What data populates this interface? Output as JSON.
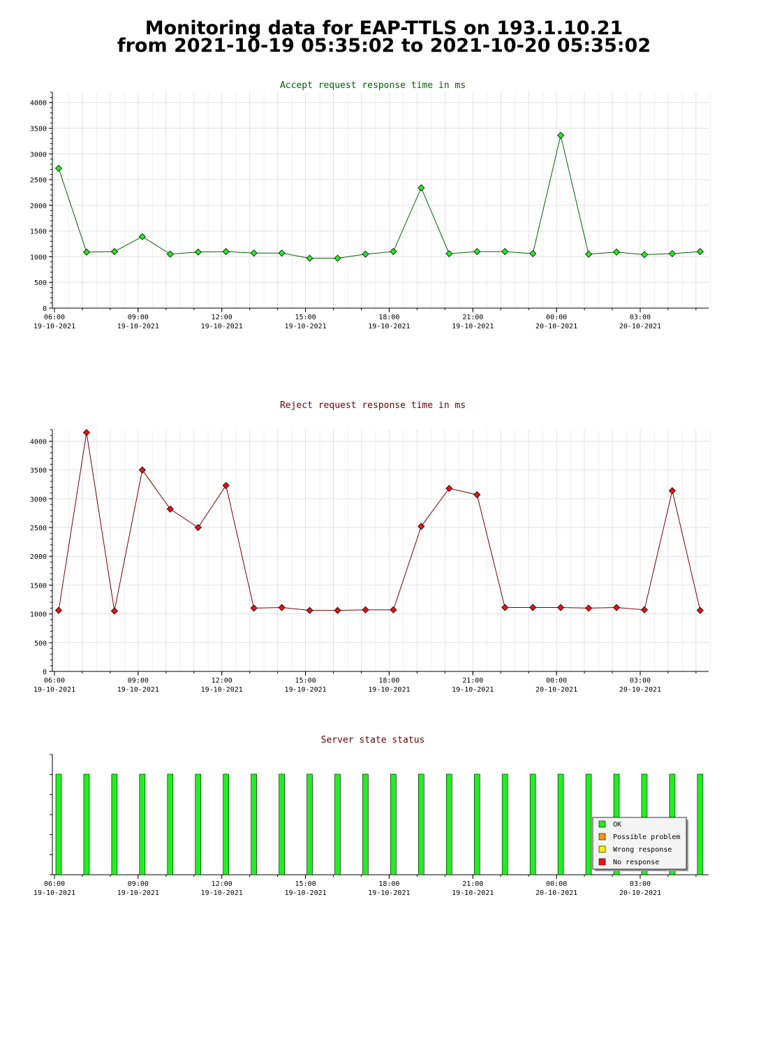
{
  "page": {
    "title_line1": "Monitoring data for EAP-TTLS on 193.1.10.21",
    "title_line2": "from 2021-10-19 05:35:02 to 2021-10-20 05:35:02"
  },
  "x_axis": {
    "ticks": [
      {
        "time": "06:00",
        "date": "19-10-2021",
        "hour": 0
      },
      {
        "time": "09:00",
        "date": "19-10-2021",
        "hour": 3
      },
      {
        "time": "12:00",
        "date": "19-10-2021",
        "hour": 6
      },
      {
        "time": "15:00",
        "date": "19-10-2021",
        "hour": 9
      },
      {
        "time": "18:00",
        "date": "19-10-2021",
        "hour": 12
      },
      {
        "time": "21:00",
        "date": "19-10-2021",
        "hour": 15
      },
      {
        "time": "00:00",
        "date": "20-10-2021",
        "hour": 18
      },
      {
        "time": "03:00",
        "date": "20-10-2021",
        "hour": 21
      }
    ]
  },
  "chart_data": [
    {
      "type": "line",
      "title": "Accept request response time in ms",
      "title_color": "#006400",
      "line_color": "#006400",
      "marker_color": "#22ee22",
      "ylim": [
        0,
        4200
      ],
      "yticks": [
        0,
        500,
        1000,
        1500,
        2000,
        2500,
        3000,
        3500,
        4000
      ],
      "x": [
        0.15,
        1.15,
        2.15,
        3.15,
        4.15,
        5.15,
        6.15,
        7.15,
        8.15,
        9.15,
        10.15,
        11.15,
        12.15,
        13.15,
        14.15,
        15.15,
        16.15,
        17.15,
        18.15,
        19.15,
        20.15,
        21.15,
        22.15,
        23.15
      ],
      "values": [
        2720,
        1090,
        1100,
        1390,
        1050,
        1090,
        1100,
        1070,
        1070,
        970,
        970,
        1050,
        1100,
        2340,
        1060,
        1100,
        1100,
        1060,
        3360,
        1050,
        1090,
        1040,
        1060,
        1100
      ]
    },
    {
      "type": "line",
      "title": "Reject request response time in ms",
      "title_color": "#6b0000",
      "line_color": "#7a0000",
      "marker_color": "#ee1111",
      "ylim": [
        0,
        4200
      ],
      "yticks": [
        0,
        500,
        1000,
        1500,
        2000,
        2500,
        3000,
        3500,
        4000
      ],
      "x": [
        0.15,
        1.15,
        2.15,
        3.15,
        4.15,
        5.15,
        6.15,
        7.15,
        8.15,
        9.15,
        10.15,
        11.15,
        12.15,
        13.15,
        14.15,
        15.15,
        16.15,
        17.15,
        18.15,
        19.15,
        20.15,
        21.15,
        22.15,
        23.15
      ],
      "values": [
        1060,
        4150,
        1050,
        3500,
        2820,
        2500,
        3230,
        1100,
        1110,
        1060,
        1060,
        1070,
        1070,
        2520,
        3180,
        3070,
        1110,
        1110,
        1110,
        1100,
        1110,
        1070,
        3140,
        1060
      ]
    },
    {
      "type": "bar",
      "title": "Server state status",
      "title_color": "#6b0000",
      "legend_position": "bottom-right",
      "states": [
        {
          "name": "OK",
          "color": "#22ee22"
        },
        {
          "name": "Possible problem",
          "color": "#ff9900"
        },
        {
          "name": "Wrong response",
          "color": "#ffee00"
        },
        {
          "name": "No response",
          "color": "#ee1111"
        }
      ],
      "x": [
        0.15,
        1.15,
        2.15,
        3.15,
        4.15,
        5.15,
        6.15,
        7.15,
        8.15,
        9.15,
        10.15,
        11.15,
        12.15,
        13.15,
        14.15,
        15.15,
        16.15,
        17.15,
        18.15,
        19.15,
        20.15,
        21.15,
        22.15,
        23.15
      ],
      "values": [
        "OK",
        "OK",
        "OK",
        "OK",
        "OK",
        "OK",
        "OK",
        "OK",
        "OK",
        "OK",
        "OK",
        "OK",
        "OK",
        "OK",
        "OK",
        "OK",
        "OK",
        "OK",
        "OK",
        "OK",
        "OK",
        "OK",
        "OK",
        "OK"
      ]
    }
  ]
}
